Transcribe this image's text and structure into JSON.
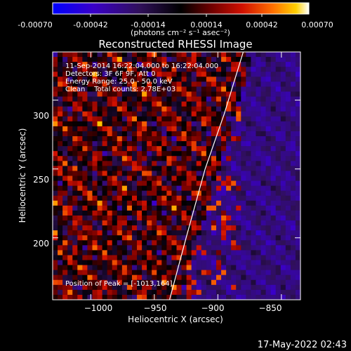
{
  "colorbar": {
    "tick_labels": [
      "-0.00070",
      "-0.00042",
      "-0.00014",
      "0.00014",
      "0.00042",
      "0.00070"
    ],
    "range": [
      -0.0007,
      0.0007
    ],
    "units": "(photons cm⁻² s⁻¹ asec⁻²)",
    "colors": [
      "#0000ff",
      "#4000c0",
      "#300060",
      "#000000",
      "#600000",
      "#c00000",
      "#ff4000",
      "#ffc000",
      "#ffffff"
    ]
  },
  "plot": {
    "title": "Reconstructed RHESSI Image",
    "xlabel": "Heliocentric X (arcsec)",
    "ylabel": "Heliocentric Y (arcsec)",
    "info_lines": [
      "11-Sep-2014 16:22:04.000 to 16:22:04.000",
      "Detectors: 3F 6F 9F, Att 0",
      "Energy Range: 25.0 - 50.0 keV",
      "Clean    Total counts: 2.78E+03"
    ],
    "peak_label": "Position of Peak = [-1013,164]"
  },
  "chart_data": {
    "type": "heatmap",
    "title": "Reconstructed RHESSI Image",
    "xlabel": "Heliocentric X (arcsec)",
    "ylabel": "Heliocentric Y (arcsec)",
    "xlim": [
      -1030,
      -835
    ],
    "ylim": [
      155,
      335
    ],
    "x_ticks": [
      -1000,
      -950,
      -900,
      -850
    ],
    "y_ticks": [
      200,
      250,
      300
    ],
    "x_tick_labels": [
      "−1000",
      "−950",
      "−900",
      "−850"
    ],
    "y_tick_labels": [
      "200",
      "250",
      "300"
    ],
    "color_range": [
      -0.0007,
      0.0007
    ],
    "limb_curve": [
      [
        -938,
        155
      ],
      [
        -925,
        200
      ],
      [
        -910,
        250
      ],
      [
        -895,
        290
      ],
      [
        -880,
        335
      ]
    ],
    "peak_position": [
      -1013,
      164
    ]
  },
  "footer": {
    "timestamp": "17-May-2022 02:43"
  }
}
